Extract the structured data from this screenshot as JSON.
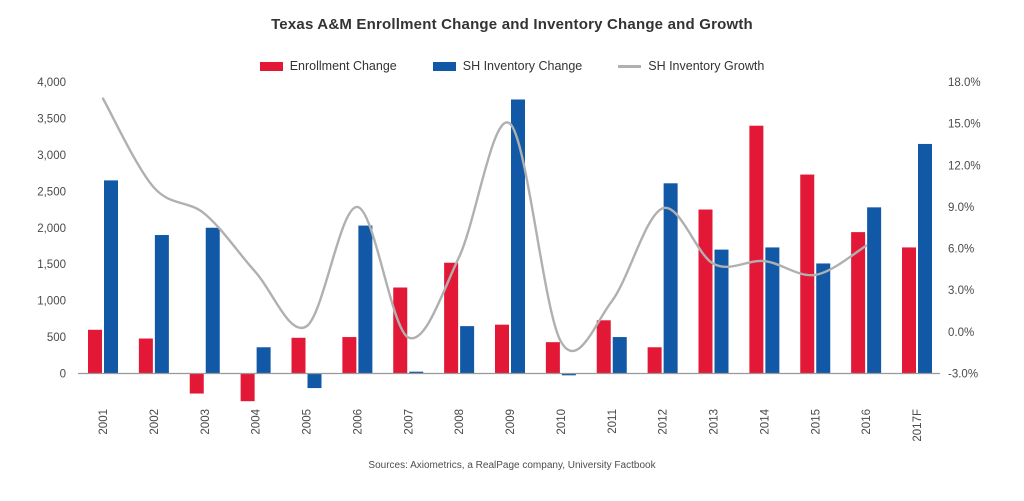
{
  "title": "Texas A&M Enrollment Change and Inventory Change and Growth",
  "source": "Sources: Axiometrics, a RealPage company, University Factbook",
  "colors": {
    "enrollment": "#e31837",
    "inventory": "#1159a6",
    "growth_line": "#b0b0b0",
    "axis_line": "#999999",
    "label_text": "#4a4a4a"
  },
  "legend": [
    {
      "label": "Enrollment Change",
      "type": "bar",
      "color": "#e31837"
    },
    {
      "label": "SH Inventory Change",
      "type": "bar",
      "color": "#1159a6"
    },
    {
      "label": "SH Inventory Growth",
      "type": "line",
      "color": "#b0b0b0"
    }
  ],
  "chart_data": {
    "type": "bar",
    "subtype": "grouped bars with smoothed line overlay",
    "title": "Texas A&M Enrollment Change and Inventory Change and Growth",
    "categories": [
      "2001",
      "2002",
      "2003",
      "2004",
      "2005",
      "2006",
      "2007",
      "2008",
      "2009",
      "2010",
      "2011",
      "2012",
      "2013",
      "2014",
      "2015",
      "2016",
      "2017F"
    ],
    "series": [
      {
        "name": "Enrollment Change",
        "type": "bar",
        "axis": "left",
        "color": "#e31837",
        "values": [
          600,
          480,
          -275,
          -380,
          490,
          500,
          1180,
          1520,
          670,
          430,
          730,
          360,
          2250,
          3400,
          2730,
          1940,
          1730
        ]
      },
      {
        "name": "SH Inventory Change",
        "type": "bar",
        "axis": "left",
        "color": "#1159a6",
        "values": [
          2650,
          1900,
          2000,
          360,
          -200,
          2030,
          25,
          650,
          3760,
          -25,
          500,
          2610,
          1700,
          1730,
          1510,
          2280,
          3150
        ]
      },
      {
        "name": "SH Inventory Growth",
        "type": "line",
        "axis": "right",
        "color": "#b0b0b0",
        "values": [
          16.8,
          10.4,
          8.5,
          4.3,
          0.4,
          9.0,
          -0.4,
          5.4,
          15.0,
          -0.7,
          2.2,
          8.9,
          4.9,
          5.1,
          4.1,
          6.2,
          null
        ]
      }
    ],
    "left_axis": {
      "range": [
        0,
        4000
      ],
      "ticks": [
        {
          "value": 4000,
          "label": "4,000"
        },
        {
          "value": 3500,
          "label": "3,500"
        },
        {
          "value": 3000,
          "label": "3,000"
        },
        {
          "value": 2500,
          "label": "2,500"
        },
        {
          "value": 2000,
          "label": "2,000"
        },
        {
          "value": 1500,
          "label": "1,500"
        },
        {
          "value": 1000,
          "label": "1,000"
        },
        {
          "value": 500,
          "label": "500"
        },
        {
          "value": 0,
          "label": "0"
        }
      ]
    },
    "right_axis": {
      "range": [
        -3,
        18
      ],
      "ticks": [
        {
          "value": 18,
          "label": "18.0%"
        },
        {
          "value": 15,
          "label": "15.0%"
        },
        {
          "value": 12,
          "label": "12.0%"
        },
        {
          "value": 9,
          "label": "9.0%"
        },
        {
          "value": 6,
          "label": "6.0%"
        },
        {
          "value": 3,
          "label": "3.0%"
        },
        {
          "value": 0,
          "label": "0.0%"
        },
        {
          "value": -3,
          "label": "-3.0%"
        }
      ]
    },
    "grid": false,
    "legend_position": "top"
  }
}
